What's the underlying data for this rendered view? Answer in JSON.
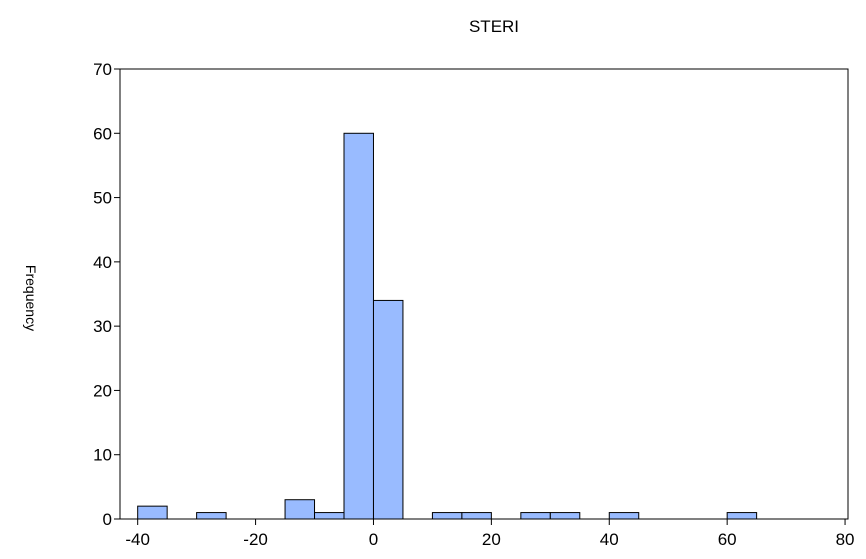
{
  "chart_data": {
    "type": "histogram",
    "title": "STERI",
    "y_label": "Frequency",
    "bins": [
      -40,
      -35,
      -30,
      -25,
      -20,
      -15,
      -10,
      -5,
      0,
      5,
      10,
      15,
      20,
      25,
      30,
      35,
      40,
      45,
      50,
      55,
      60,
      65
    ],
    "counts": [
      2,
      0,
      1,
      0,
      0,
      3,
      1,
      60,
      34,
      0,
      1,
      1,
      0,
      1,
      1,
      0,
      1,
      0,
      0,
      0,
      1
    ],
    "color": "#99bbff",
    "xlim": [
      -43,
      80.5
    ],
    "xticks": [
      -40,
      -20,
      0,
      20,
      40,
      60,
      80
    ],
    "ylim": [
      0,
      70
    ],
    "yticks": [
      0,
      10,
      20,
      30,
      40,
      50,
      60,
      70
    ]
  }
}
